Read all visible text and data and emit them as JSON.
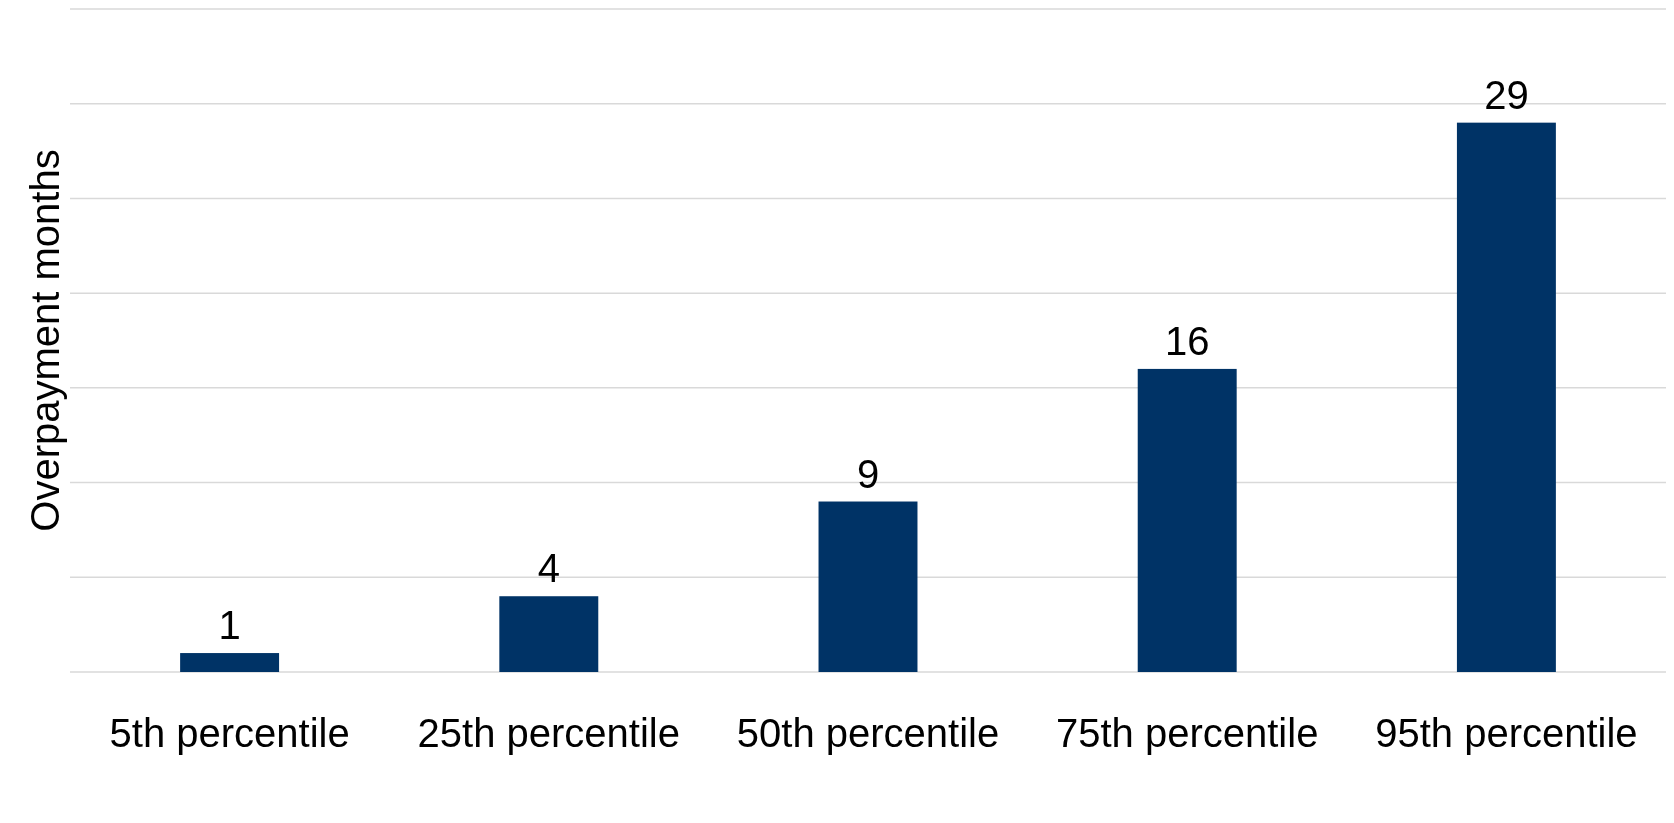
{
  "chart_data": {
    "type": "bar",
    "ylabel": "Overpayment months",
    "categories": [
      "5th percentile",
      "25th percentile",
      "50th percentile",
      "75th percentile",
      "95th percentile"
    ],
    "values": [
      1,
      4,
      9,
      16,
      29
    ],
    "color": "#003366",
    "ylim": [
      0,
      35
    ],
    "yticks": [
      {
        "value": 0,
        "label": null
      },
      {
        "value": 5,
        "label": null
      },
      {
        "value": 10,
        "label": null
      },
      {
        "value": 15,
        "label": null
      },
      {
        "value": 20,
        "label": null
      },
      {
        "value": 25,
        "label": null
      },
      {
        "value": 30,
        "label": null
      },
      {
        "value": 35,
        "label": null
      }
    ],
    "tick_labels": "x",
    "grid": "y",
    "data_labels": true
  }
}
